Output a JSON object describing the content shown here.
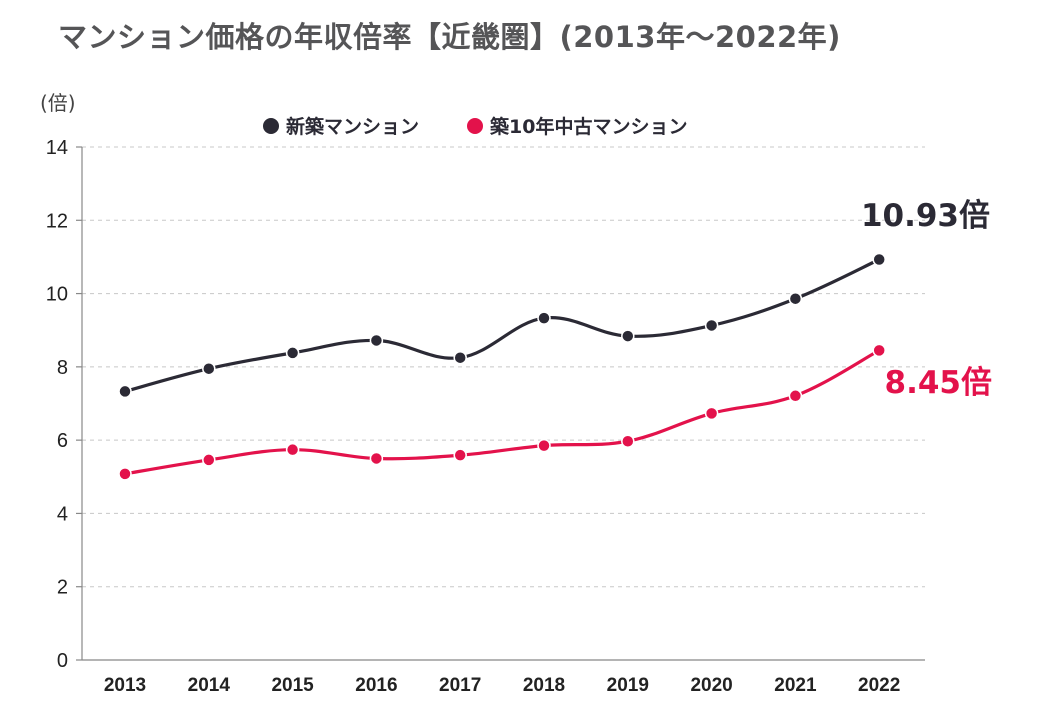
{
  "chart_data": {
    "type": "line",
    "title": "マンション価格の年収倍率【近畿圏】(2013年～2022年)",
    "ylabel": "(倍)",
    "xlabel": "",
    "ylim": [
      0,
      14
    ],
    "yticks": [
      0,
      2,
      4,
      6,
      8,
      10,
      12,
      14
    ],
    "grid": true,
    "legend_position": "top-center",
    "categories": [
      "2013",
      "2014",
      "2015",
      "2016",
      "2017",
      "2018",
      "2019",
      "2020",
      "2021",
      "2022"
    ],
    "series": [
      {
        "name": "新築マンション",
        "color": "#2b2a35",
        "values": [
          7.33,
          7.95,
          8.38,
          8.72,
          8.25,
          9.33,
          8.84,
          9.13,
          9.86,
          10.93
        ],
        "end_label": "10.93倍"
      },
      {
        "name": "築10年中古マンション",
        "color": "#e3124b",
        "values": [
          5.08,
          5.46,
          5.74,
          5.5,
          5.59,
          5.85,
          5.97,
          6.73,
          7.21,
          8.45
        ],
        "end_label": "8.45倍"
      }
    ]
  }
}
